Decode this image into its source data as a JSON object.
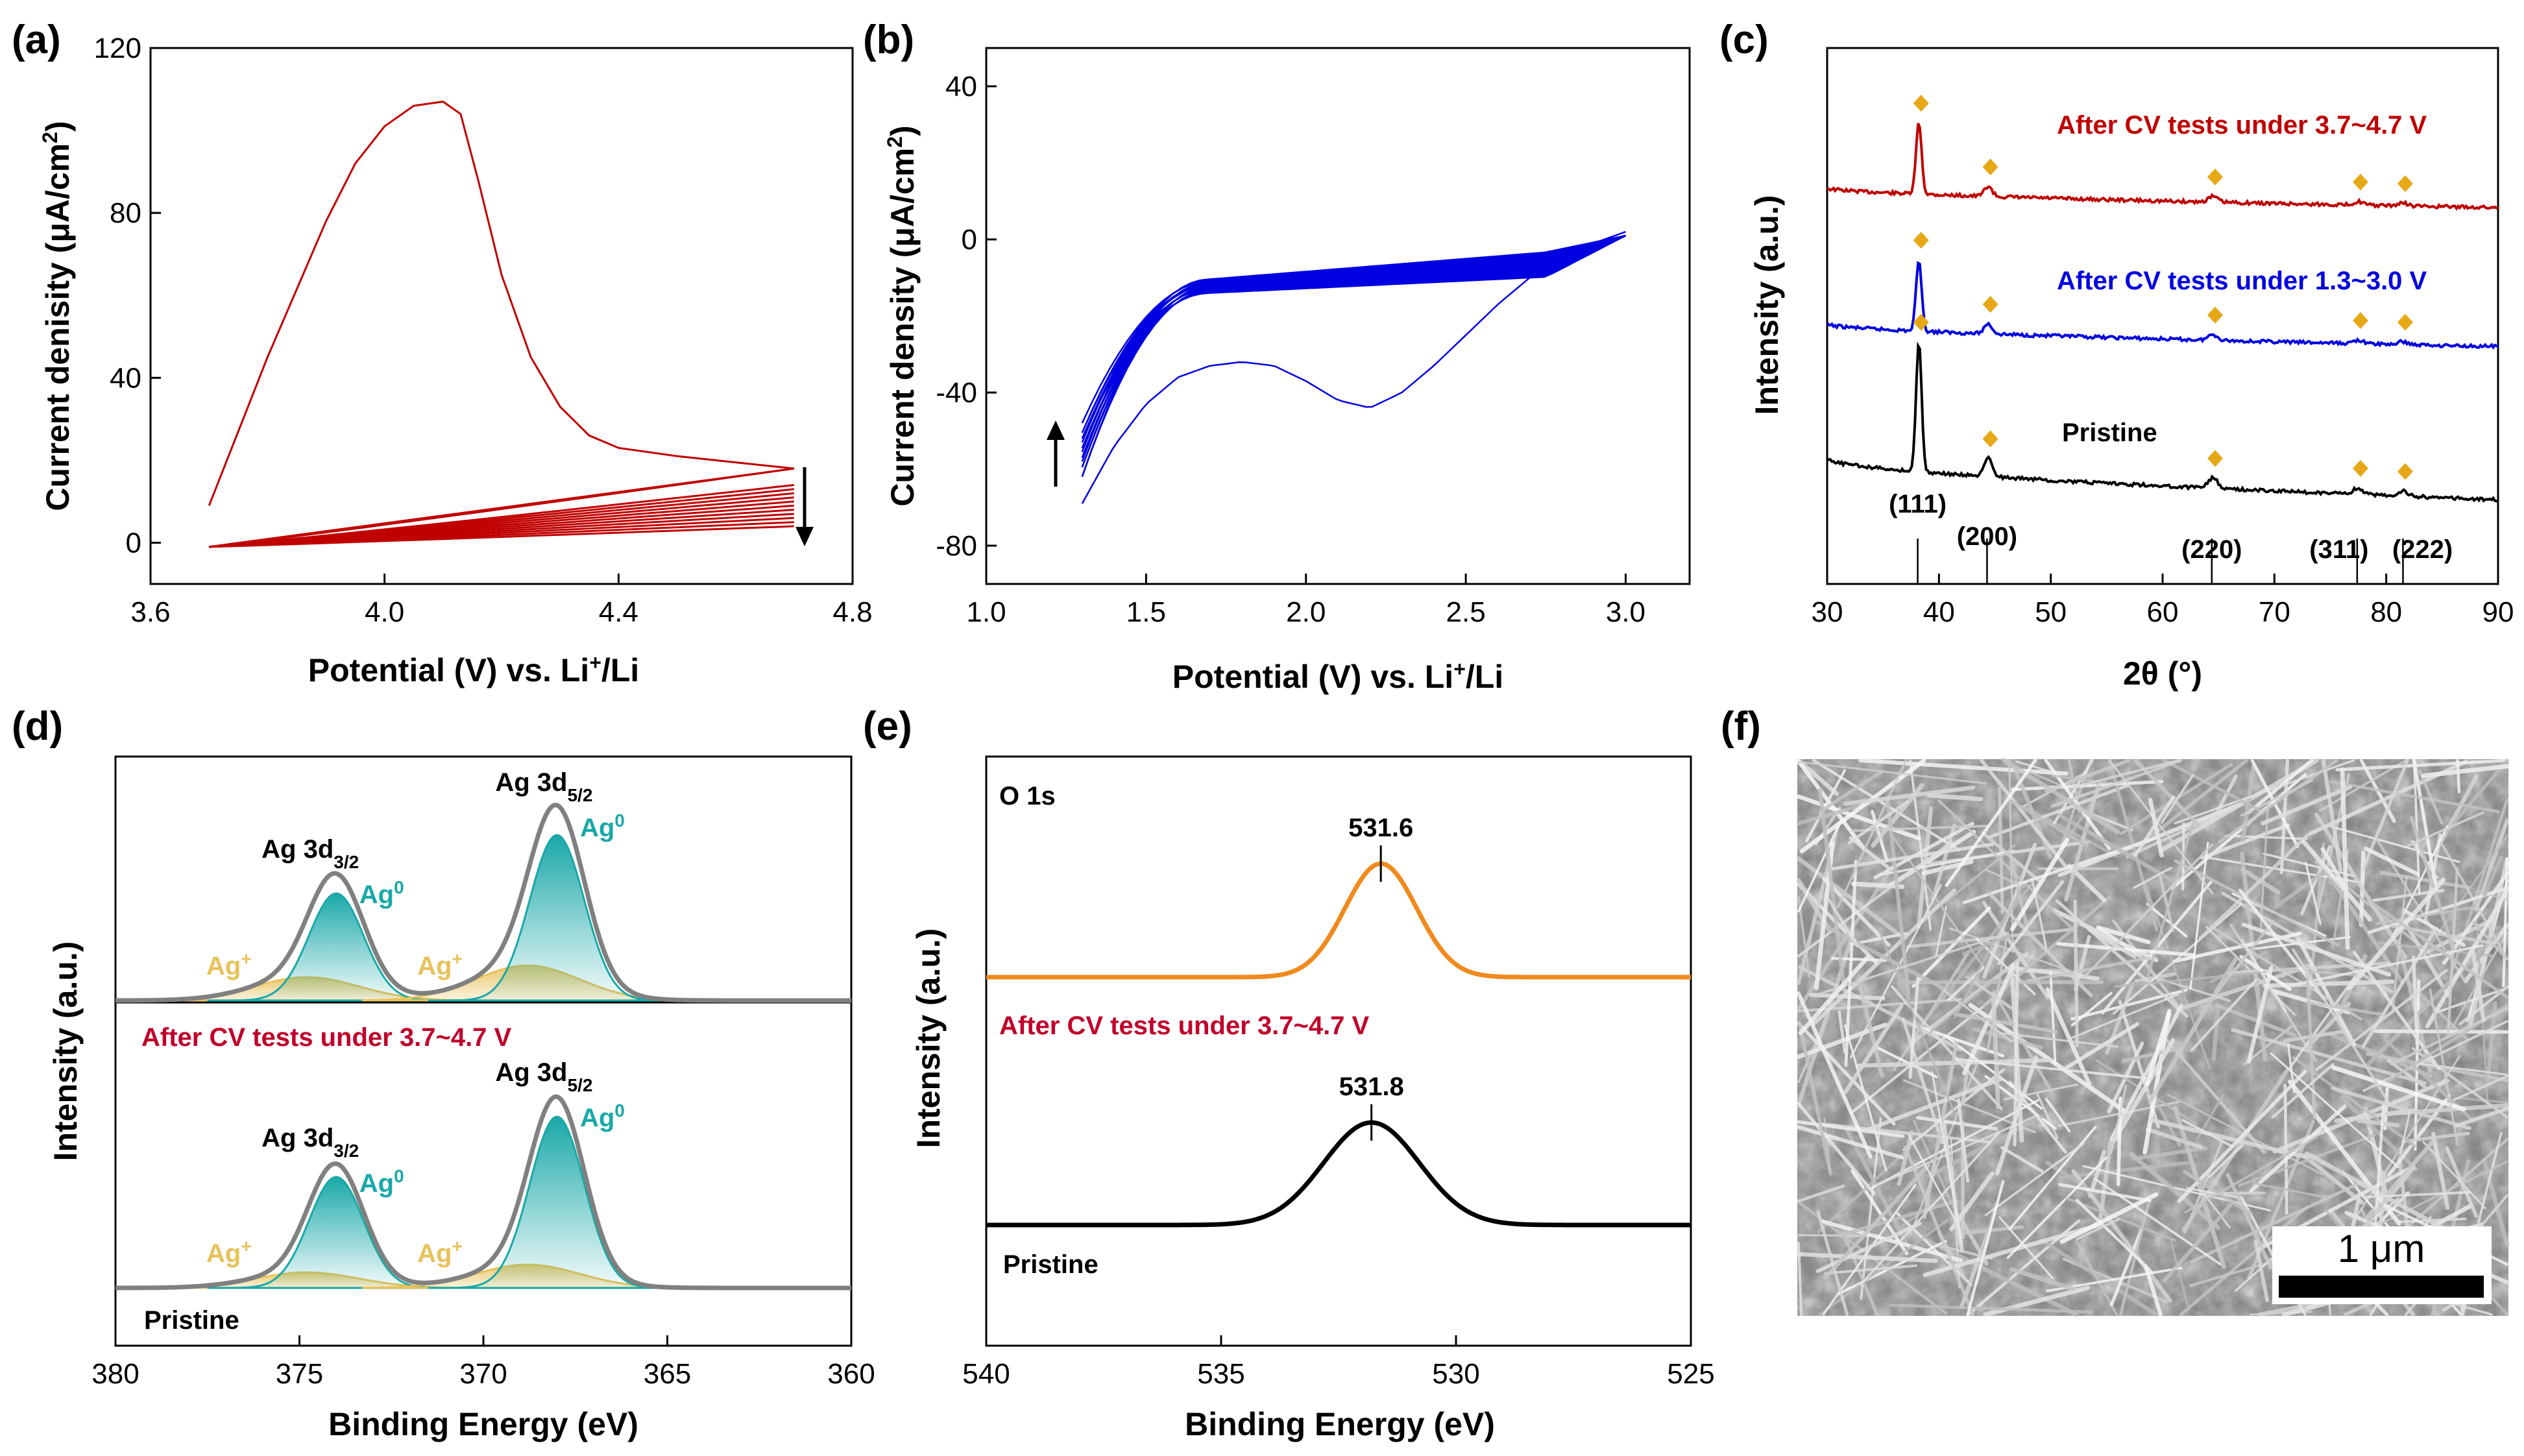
{
  "colors": {
    "cv_red": "#c00000",
    "cv_blue": "#0000e0",
    "xrd_black": "#000000",
    "diamond": "#e6a817",
    "ag0": "#1aa8a8",
    "agplus": "#e8c25a",
    "envelope": "#808080",
    "o1s_orange": "#f08a1e",
    "label_red": "#c0002a"
  },
  "chart_data": [
    {
      "panel": "(a)",
      "type": "line",
      "xlabel_parts": [
        "Potential (V) vs. Li",
        "+",
        "/Li"
      ],
      "ylabel_parts": [
        "Current denisity (μA/cm",
        "2",
        ")"
      ],
      "xlim": [
        3.6,
        4.8
      ],
      "ylim": [
        -10,
        120
      ],
      "xticks": [
        "3.6",
        "4.0",
        "4.4",
        "4.8"
      ],
      "yticks": [
        "0",
        "40",
        "80",
        "120"
      ],
      "first_cycle": {
        "x": [
          3.7,
          3.8,
          3.9,
          3.95,
          4.0,
          4.05,
          4.1,
          4.13,
          4.16,
          4.2,
          4.25,
          4.3,
          4.35,
          4.4,
          4.5,
          4.6,
          4.7
        ],
        "y": [
          9,
          45,
          78,
          92,
          101,
          106,
          107,
          104,
          88,
          65,
          45,
          33,
          26,
          23,
          21,
          19.5,
          18
        ]
      },
      "cycles_end_values_at_4_7V": [
        4,
        5,
        6,
        7,
        8,
        9,
        10,
        11,
        12,
        13,
        14,
        18
      ],
      "start_value_at_3_7V": -1,
      "arrow_direction": "down"
    },
    {
      "panel": "(b)",
      "type": "line",
      "xlabel_parts": [
        "Potential (V) vs. Li",
        "+",
        "/Li"
      ],
      "ylabel_parts": [
        "Current density (μA/cm",
        "2",
        ")"
      ],
      "xlim": [
        1.0,
        3.2
      ],
      "ylim": [
        -90,
        50
      ],
      "xticks": [
        "1.0",
        "1.5",
        "2.0",
        "2.5",
        "3.0"
      ],
      "yticks": [
        "-80",
        "-40",
        "0",
        "40"
      ],
      "first_cycle": {
        "x": [
          1.3,
          1.4,
          1.5,
          1.6,
          1.7,
          1.8,
          1.9,
          2.0,
          2.1,
          2.2,
          2.3,
          2.4,
          2.5,
          2.6,
          2.7,
          2.8,
          2.9,
          3.0
        ],
        "y": [
          -69,
          -54,
          -43,
          -36,
          -33,
          -32,
          -33,
          -37,
          -42,
          -44,
          -40,
          -33,
          -25,
          -17,
          -10,
          -5,
          -1,
          2
        ]
      },
      "cycles_count": 20,
      "arrow_direction": "up"
    },
    {
      "panel": "(c)",
      "type": "line",
      "xlabel": "2θ (°)",
      "ylabel": "Intensity (a.u.)",
      "xlim": [
        30,
        90
      ],
      "xticks": [
        "30",
        "40",
        "50",
        "60",
        "70",
        "80",
        "90"
      ],
      "series": [
        {
          "name": "After CV tests under 3.7~4.7 V",
          "color": "#c00000"
        },
        {
          "name": "After CV tests under 1.3~3.0 V",
          "color": "#0000e0"
        },
        {
          "name": "Pristine",
          "color": "#000000"
        }
      ],
      "peaks": [
        {
          "pos": 38.2,
          "h": 1.0,
          "w": 0.35
        },
        {
          "pos": 44.4,
          "h": 0.14,
          "w": 0.5
        },
        {
          "pos": 64.5,
          "h": 0.08,
          "w": 0.6
        },
        {
          "pos": 77.5,
          "h": 0.05,
          "w": 0.6
        },
        {
          "pos": 81.5,
          "h": 0.04,
          "w": 0.6
        }
      ],
      "reference_lines": [
        {
          "label": "(111)",
          "pos": 38.1
        },
        {
          "label": "(200)",
          "pos": 44.3
        },
        {
          "label": "(220)",
          "pos": 64.4
        },
        {
          "label": "(311)",
          "pos": 77.4
        },
        {
          "label": "(222)",
          "pos": 81.5
        }
      ]
    },
    {
      "panel": "(d)",
      "type": "area",
      "xlabel": "Binding Energy (eV)",
      "ylabel": "Intensity (a.u.)",
      "xlim": [
        380,
        360
      ],
      "xticks": [
        "380",
        "375",
        "370",
        "365",
        "360"
      ],
      "spectra": [
        {
          "name": "After CV tests under 3.7~4.7 V",
          "peaks": [
            {
              "label": "Ag 3d",
              "sub": "3/2",
              "pos": 374.0,
              "ag0": 0.55,
              "agplus_pos": 374.8,
              "agplus": 0.12
            },
            {
              "label": "Ag 3d",
              "sub": "5/2",
              "pos": 368.0,
              "ag0": 0.85,
              "agplus_pos": 368.8,
              "agplus": 0.18
            }
          ]
        },
        {
          "name": "Pristine",
          "peaks": [
            {
              "label": "Ag 3d",
              "sub": "3/2",
              "pos": 374.0,
              "ag0": 0.57,
              "agplus_pos": 374.8,
              "agplus": 0.08
            },
            {
              "label": "Ag 3d",
              "sub": "5/2",
              "pos": 368.0,
              "ag0": 0.88,
              "agplus_pos": 368.8,
              "agplus": 0.12
            }
          ]
        }
      ],
      "component_labels": {
        "ag0": "Ag",
        "ag0_sup": "0",
        "agplus": "Ag",
        "agplus_sup": "+"
      }
    },
    {
      "panel": "(e)",
      "type": "line",
      "xlabel": "Binding Energy (eV)",
      "ylabel": "Intensity (a.u.)",
      "xlim": [
        540,
        525
      ],
      "xticks": [
        "540",
        "535",
        "530",
        "525"
      ],
      "title": "O 1s",
      "series": [
        {
          "name": "After CV tests under 3.7~4.7 V",
          "peak": 531.6,
          "peak_label": "531.6",
          "fwhm": 1.8,
          "color": "#f08a1e"
        },
        {
          "name": "Pristine",
          "peak": 531.8,
          "peak_label": "531.8",
          "fwhm": 2.4,
          "color": "#000000"
        }
      ]
    }
  ],
  "panel_f": {
    "label": "(f)",
    "scale_bar": "1 μm"
  }
}
